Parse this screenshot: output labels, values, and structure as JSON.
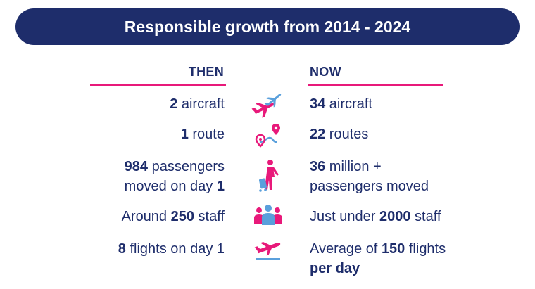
{
  "header": {
    "title": "Responsible growth from 2014 - 2024"
  },
  "columns": {
    "then": "THEN",
    "now": "NOW"
  },
  "rows": [
    {
      "icon": "planes-icon",
      "then": {
        "pre": "",
        "bold": "2",
        "post": " aircraft",
        "line2_pre": "",
        "line2_bold": ""
      },
      "now": {
        "pre": "",
        "bold": "34",
        "post": " aircraft",
        "line2_pre": "",
        "line2_bold": ""
      }
    },
    {
      "icon": "route-icon",
      "then": {
        "pre": "",
        "bold": "1",
        "post": " route",
        "line2_pre": "",
        "line2_bold": ""
      },
      "now": {
        "pre": "",
        "bold": "22",
        "post": " routes",
        "line2_pre": "",
        "line2_bold": ""
      }
    },
    {
      "icon": "traveller-icon",
      "then": {
        "pre": "",
        "bold": "984",
        "post": " passengers",
        "line2_pre": "moved on day ",
        "line2_bold": "1"
      },
      "now": {
        "pre": "",
        "bold": "36",
        "post": " million +",
        "line2_pre": "passengers moved",
        "line2_bold": ""
      }
    },
    {
      "icon": "staff-icon",
      "then": {
        "pre": "Around ",
        "bold": "250",
        "post": " staff",
        "line2_pre": "",
        "line2_bold": ""
      },
      "now": {
        "pre": "Just under ",
        "bold": "2000",
        "post": " staff",
        "line2_pre": "",
        "line2_bold": ""
      }
    },
    {
      "icon": "takeoff-icon",
      "then": {
        "pre": "",
        "bold": "8",
        "post": " flights on day 1",
        "line2_pre": "",
        "line2_bold": ""
      },
      "now": {
        "pre": "Average of ",
        "bold": "150",
        "post": " flights",
        "line2_pre": "",
        "line2_bold": "per day"
      }
    }
  ],
  "colors": {
    "navy": "#1e2d6b",
    "pink": "#e8197a",
    "blue": "#5aa0dc"
  }
}
